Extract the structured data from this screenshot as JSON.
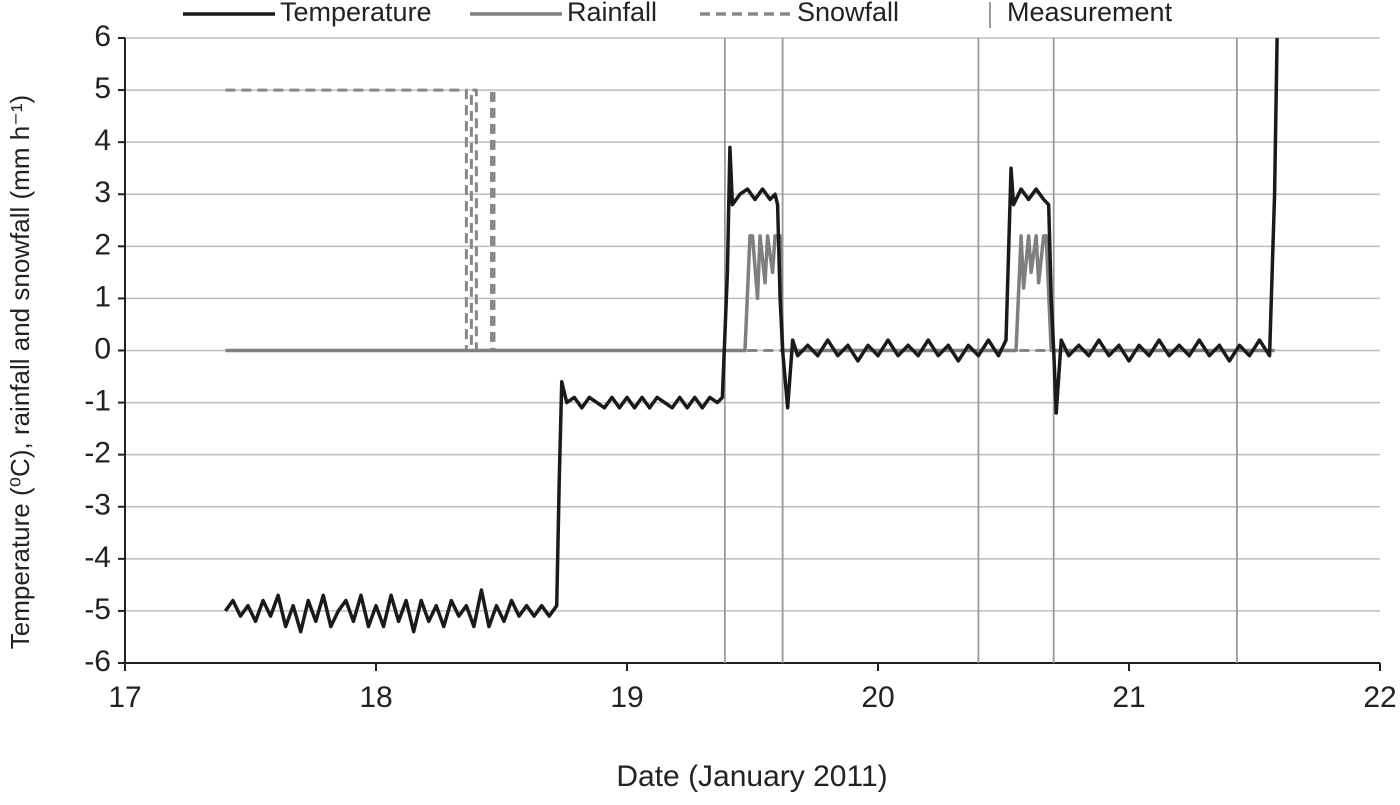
{
  "chart_data": {
    "type": "line",
    "xlabel": "Date (January 2011)",
    "ylabel": "Temperature (⁰C),  rainfall and  snowfall (mm h⁻¹)",
    "xlim": [
      17,
      22
    ],
    "xticks": [
      17,
      18,
      19,
      20,
      21,
      22
    ],
    "ylim": [
      -6,
      6
    ],
    "yticks": [
      -6,
      -5,
      -4,
      -3,
      -2,
      -1,
      0,
      1,
      2,
      3,
      4,
      5,
      6
    ],
    "grid": true,
    "legend": "top",
    "series": [
      {
        "name": "Temperature",
        "color": "#1a1a1a",
        "style": "solid",
        "x": [
          17.4,
          17.43,
          17.46,
          17.49,
          17.52,
          17.55,
          17.58,
          17.61,
          17.64,
          17.67,
          17.7,
          17.73,
          17.76,
          17.79,
          17.82,
          17.85,
          17.88,
          17.91,
          17.94,
          17.97,
          18.0,
          18.03,
          18.06,
          18.09,
          18.12,
          18.15,
          18.18,
          18.21,
          18.24,
          18.27,
          18.3,
          18.33,
          18.36,
          18.39,
          18.42,
          18.45,
          18.48,
          18.51,
          18.54,
          18.57,
          18.6,
          18.63,
          18.66,
          18.69,
          18.72,
          18.73,
          18.74,
          18.76,
          18.79,
          18.82,
          18.85,
          18.88,
          18.91,
          18.94,
          18.97,
          19.0,
          19.03,
          19.06,
          19.09,
          19.12,
          19.15,
          19.18,
          19.21,
          19.24,
          19.27,
          19.3,
          19.33,
          19.36,
          19.38,
          19.4,
          19.41,
          19.42,
          19.45,
          19.48,
          19.51,
          19.54,
          19.57,
          19.59,
          19.6,
          19.61,
          19.62,
          19.64,
          19.66,
          19.68,
          19.72,
          19.76,
          19.8,
          19.84,
          19.88,
          19.92,
          19.96,
          20.0,
          20.04,
          20.08,
          20.12,
          20.16,
          20.2,
          20.24,
          20.28,
          20.32,
          20.36,
          20.4,
          20.44,
          20.48,
          20.51,
          20.53,
          20.54,
          20.57,
          20.6,
          20.63,
          20.66,
          20.68,
          20.69,
          20.7,
          20.71,
          20.73,
          20.76,
          20.8,
          20.84,
          20.88,
          20.92,
          20.96,
          21.0,
          21.04,
          21.08,
          21.12,
          21.16,
          21.2,
          21.24,
          21.28,
          21.32,
          21.36,
          21.4,
          21.44,
          21.48,
          21.52,
          21.56,
          21.58,
          21.59
        ],
        "values": [
          -5.0,
          -4.8,
          -5.1,
          -4.9,
          -5.2,
          -4.8,
          -5.1,
          -4.7,
          -5.3,
          -4.9,
          -5.4,
          -4.8,
          -5.2,
          -4.7,
          -5.3,
          -5.0,
          -4.8,
          -5.2,
          -4.7,
          -5.3,
          -4.9,
          -5.3,
          -4.7,
          -5.2,
          -4.8,
          -5.4,
          -4.8,
          -5.2,
          -4.9,
          -5.3,
          -4.8,
          -5.1,
          -4.9,
          -5.3,
          -4.6,
          -5.3,
          -4.9,
          -5.2,
          -4.8,
          -5.1,
          -4.9,
          -5.1,
          -4.9,
          -5.1,
          -4.9,
          -2.5,
          -0.6,
          -1.0,
          -0.9,
          -1.1,
          -0.9,
          -1.0,
          -1.1,
          -0.9,
          -1.1,
          -0.9,
          -1.1,
          -0.9,
          -1.1,
          -0.9,
          -1.0,
          -1.1,
          -0.9,
          -1.1,
          -0.9,
          -1.1,
          -0.9,
          -1.0,
          -0.9,
          1.5,
          3.9,
          2.8,
          3.0,
          3.1,
          2.9,
          3.1,
          2.9,
          3.0,
          2.8,
          1.0,
          0,
          -1.1,
          0.2,
          -0.1,
          0.1,
          -0.1,
          0.2,
          -0.1,
          0.1,
          -0.2,
          0.1,
          -0.1,
          0.2,
          -0.1,
          0.1,
          -0.1,
          0.2,
          -0.1,
          0.1,
          -0.2,
          0.1,
          -0.1,
          0.2,
          -0.1,
          0.2,
          3.5,
          2.8,
          3.1,
          2.9,
          3.1,
          2.9,
          2.8,
          1.0,
          0,
          -1.2,
          0.2,
          -0.1,
          0.1,
          -0.1,
          0.2,
          -0.1,
          0.1,
          -0.2,
          0.1,
          -0.1,
          0.2,
          -0.1,
          0.1,
          -0.1,
          0.2,
          -0.1,
          0.1,
          -0.2,
          0.1,
          -0.1,
          0.2,
          -0.1,
          3.0,
          6.0
        ]
      },
      {
        "name": "Rainfall",
        "color": "#7f7f7f",
        "style": "solid",
        "x": [
          17.4,
          19.47,
          19.49,
          19.5,
          19.52,
          19.53,
          19.55,
          19.56,
          19.58,
          19.59,
          19.61,
          19.62,
          20.55,
          20.57,
          20.58,
          20.6,
          20.61,
          20.63,
          20.64,
          20.66,
          20.67,
          20.69,
          20.7,
          21.58
        ],
        "values": [
          0,
          0,
          2.2,
          2.2,
          1.0,
          2.2,
          1.3,
          2.2,
          1.5,
          2.2,
          2.2,
          0,
          0,
          2.2,
          1.2,
          2.2,
          1.5,
          2.2,
          1.3,
          2.2,
          2.2,
          0,
          0,
          0
        ]
      },
      {
        "name": "Snowfall",
        "color": "#888888",
        "style": "dashed",
        "x": [
          17.4,
          18.36,
          18.36,
          18.38,
          18.38,
          18.4,
          18.4,
          18.46,
          18.46,
          18.47,
          18.47,
          21.58
        ],
        "values": [
          5,
          5,
          0,
          0,
          5,
          5,
          0,
          0,
          5,
          5,
          0,
          0
        ]
      },
      {
        "name": "Measurement",
        "color": "#9a9a9a",
        "style": "vline",
        "x": [
          19.39,
          19.62,
          20.4,
          20.7,
          21.43
        ]
      }
    ]
  }
}
